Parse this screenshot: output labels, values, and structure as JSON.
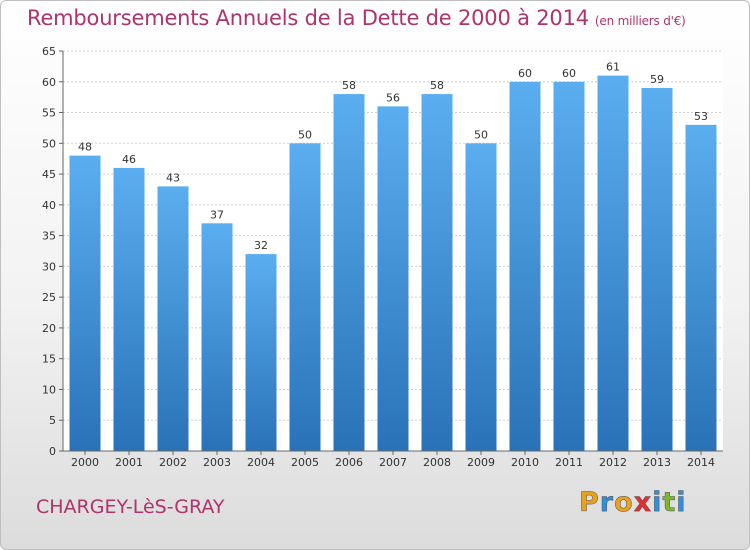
{
  "header": {
    "title": "Remboursements Annuels de la Dette de 2000 à 2014",
    "subtitle": "(en milliers d'€)"
  },
  "footer": {
    "town": "CHARGEY-LèS-GRAY",
    "logo": [
      "P",
      "r",
      "o",
      "x",
      "i",
      "t",
      "i"
    ],
    "logo_colors": [
      "#e8a020",
      "#2f8fd8",
      "#e8a020",
      "#e03030",
      "#2f8fd8",
      "#7ab82e",
      "#2f8fd8"
    ]
  },
  "colors": {
    "title": "#b0336c",
    "bar_top": "#5aaef0",
    "bar_bottom": "#2a72b8",
    "grid": "#cfcfcf"
  },
  "chart_data": {
    "type": "bar",
    "title": "Remboursements Annuels de la Dette de 2000 à 2014",
    "subtitle": "(en milliers d'€)",
    "categories": [
      "2000",
      "2001",
      "2002",
      "2003",
      "2004",
      "2005",
      "2006",
      "2007",
      "2008",
      "2009",
      "2010",
      "2011",
      "2012",
      "2013",
      "2014"
    ],
    "values": [
      48,
      46,
      43,
      37,
      32,
      50,
      58,
      56,
      58,
      50,
      60,
      60,
      61,
      59,
      53
    ],
    "ylim": [
      0,
      65
    ],
    "yticks": [
      0,
      5,
      10,
      15,
      20,
      25,
      30,
      35,
      40,
      45,
      50,
      55,
      60,
      65
    ],
    "grid": true,
    "legend": "none",
    "data_labels": true
  }
}
